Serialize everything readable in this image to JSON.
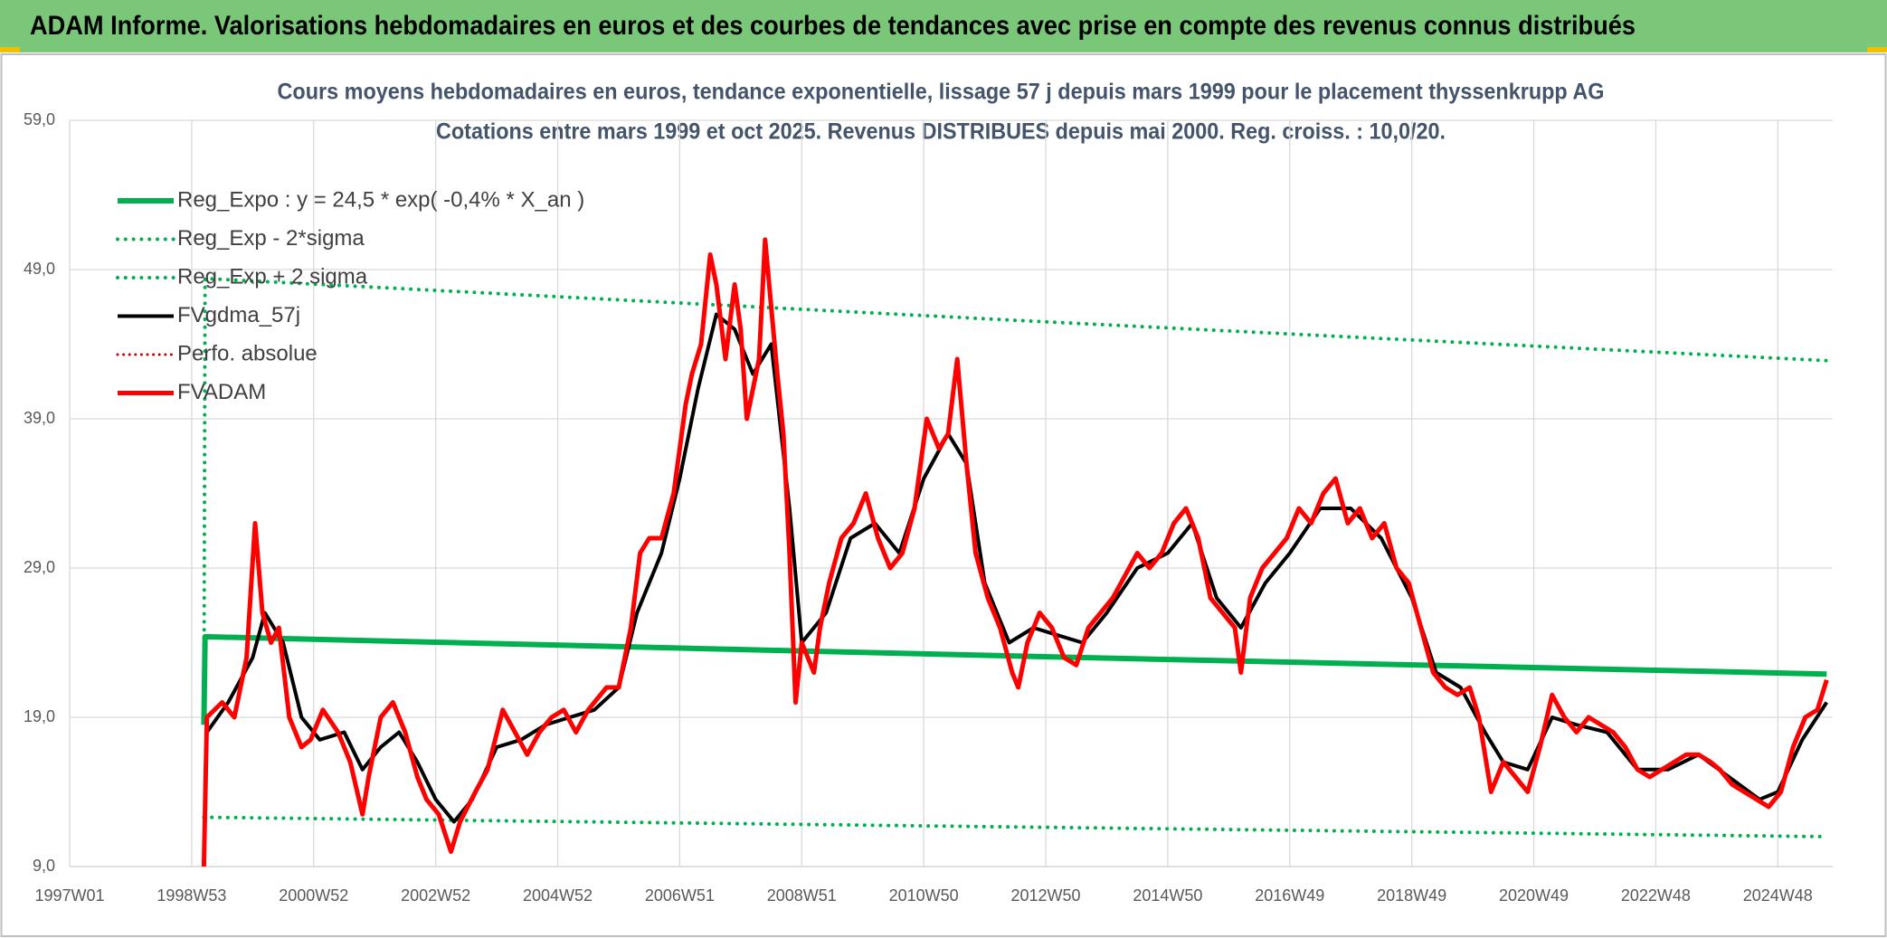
{
  "chart_data": {
    "type": "line",
    "header": "ADAM Informe. Valorisations hebdomadaires en euros et des courbes de tendances avec prise en compte des revenus connus distribués",
    "title": "Cours moyens hebdomadaires en euros, tendance exponentielle, lissage 57 j depuis mars 1999 pour le placement thyssenkrupp AG",
    "subtitle": "Cotations entre mars 1999 et oct 2025. Revenus DISTRIBUES depuis mai 2000. Reg. croiss. : 10,0/20.",
    "xlim": [
      1997.0,
      2025.9
    ],
    "xticks": [
      {
        "value": 1997.0,
        "label": "1997W01"
      },
      {
        "value": 1999.0,
        "label": "1998W53"
      },
      {
        "value": 2001.0,
        "label": "2000W52"
      },
      {
        "value": 2003.0,
        "label": "2002W52"
      },
      {
        "value": 2005.0,
        "label": "2004W52"
      },
      {
        "value": 2007.0,
        "label": "2006W51"
      },
      {
        "value": 2009.0,
        "label": "2008W51"
      },
      {
        "value": 2011.0,
        "label": "2010W50"
      },
      {
        "value": 2013.0,
        "label": "2012W50"
      },
      {
        "value": 2015.0,
        "label": "2014W50"
      },
      {
        "value": 2017.0,
        "label": "2016W49"
      },
      {
        "value": 2019.0,
        "label": "2018W49"
      },
      {
        "value": 2021.0,
        "label": "2020W49"
      },
      {
        "value": 2023.0,
        "label": "2022W48"
      },
      {
        "value": 2025.0,
        "label": "2024W48"
      }
    ],
    "ylim": [
      9,
      59
    ],
    "yticks": [
      {
        "value": 9,
        "label": "9,0"
      },
      {
        "value": 19,
        "label": "19,0"
      },
      {
        "value": 29,
        "label": "29,0"
      },
      {
        "value": 39,
        "label": "39,0"
      },
      {
        "value": 49,
        "label": "49,0"
      },
      {
        "value": 59,
        "label": "59,0"
      }
    ],
    "grid": true,
    "legend": "upper left",
    "series": [
      {
        "name": "Reg_Expo : y = 24,5 * exp( -0,4% *  X_an )",
        "color": "#00b050",
        "dash": "solid",
        "line_width": 6,
        "x": [
          1999.2,
          1999.22,
          2012.5,
          2025.8
        ],
        "values": [
          18.5,
          24.4,
          23.1,
          21.9
        ]
      },
      {
        "name": "Reg_Exp - 2*sigma",
        "color": "#00b050",
        "dash": "dotted",
        "line_width": 4,
        "x": [
          1999.2,
          2025.8
        ],
        "values": [
          12.3,
          11.0
        ]
      },
      {
        "name": "Reg_Exp + 2 sigma",
        "color": "#00b050",
        "dash": "dotted",
        "line_width": 4,
        "x": [
          1999.2,
          1999.22,
          2012.5,
          2025.8
        ],
        "values": [
          19,
          48.4,
          45.6,
          42.9
        ]
      },
      {
        "name": "FVgdma_57j",
        "color": "#000000",
        "dash": "solid",
        "line_width": 4,
        "x": [
          1999.25,
          1999.6,
          2000.0,
          2000.2,
          2000.5,
          2000.8,
          2001.1,
          2001.5,
          2001.8,
          2002.1,
          2002.4,
          2002.7,
          2003.0,
          2003.3,
          2003.6,
          2004.0,
          2004.4,
          2004.8,
          2005.2,
          2005.6,
          2006.0,
          2006.3,
          2006.7,
          2007.0,
          2007.3,
          2007.6,
          2007.9,
          2008.2,
          2008.5,
          2008.8,
          2009.0,
          2009.4,
          2009.8,
          2010.2,
          2010.6,
          2011.0,
          2011.4,
          2011.7,
          2012.0,
          2012.4,
          2012.8,
          2013.2,
          2013.6,
          2014.0,
          2014.5,
          2015.0,
          2015.4,
          2015.8,
          2016.2,
          2016.6,
          2017.0,
          2017.5,
          2018.0,
          2018.5,
          2019.0,
          2019.4,
          2019.8,
          2020.2,
          2020.5,
          2020.9,
          2021.3,
          2021.7,
          2022.2,
          2022.7,
          2023.2,
          2023.7,
          2024.2,
          2024.7,
          2025.0,
          2025.4,
          2025.8
        ],
        "values": [
          18,
          20,
          23,
          26,
          24,
          19,
          17.5,
          18,
          15.5,
          17,
          18,
          16,
          13.5,
          12,
          13.5,
          17,
          17.5,
          18.5,
          19,
          19.5,
          21,
          26,
          30,
          35,
          41,
          46,
          45,
          42,
          44,
          33,
          24,
          26,
          31,
          32,
          30,
          35,
          38,
          36,
          28,
          24,
          25,
          24.5,
          24,
          26,
          29,
          30,
          32,
          27,
          25,
          28,
          30,
          33,
          33,
          31,
          27,
          22,
          21,
          18,
          16,
          15.5,
          19,
          18.5,
          18,
          15.5,
          15.5,
          16.5,
          15,
          13.5,
          14,
          17.5,
          20
        ]
      },
      {
        "name": "Perfo. absolue",
        "color": "#c00000",
        "dash": "dotted",
        "line_width": 3,
        "x": [],
        "values": []
      },
      {
        "name": "FVADAM",
        "color": "#ff0000",
        "dash": "solid",
        "line_width": 5,
        "x": [
          1999.2,
          1999.25,
          1999.5,
          1999.7,
          1999.9,
          2000.04,
          2000.16,
          2000.3,
          2000.43,
          2000.6,
          2000.8,
          2000.95,
          2001.15,
          2001.4,
          2001.6,
          2001.8,
          2001.9,
          2002.1,
          2002.3,
          2002.5,
          2002.7,
          2002.85,
          2003.05,
          2003.25,
          2003.4,
          2003.65,
          2003.85,
          2004.1,
          2004.3,
          2004.5,
          2004.7,
          2004.9,
          2005.1,
          2005.3,
          2005.5,
          2005.8,
          2006.0,
          2006.2,
          2006.35,
          2006.5,
          2006.7,
          2006.9,
          2007.1,
          2007.2,
          2007.35,
          2007.5,
          2007.6,
          2007.75,
          2007.9,
          2008.0,
          2008.1,
          2008.3,
          2008.4,
          2008.6,
          2008.7,
          2008.8,
          2008.9,
          2009.0,
          2009.2,
          2009.3,
          2009.45,
          2009.65,
          2009.85,
          2010.05,
          2010.25,
          2010.45,
          2010.65,
          2010.85,
          2011.05,
          2011.25,
          2011.4,
          2011.55,
          2011.7,
          2011.85,
          2012.05,
          2012.25,
          2012.45,
          2012.55,
          2012.7,
          2012.9,
          2013.1,
          2013.3,
          2013.5,
          2013.7,
          2013.9,
          2014.1,
          2014.3,
          2014.5,
          2014.7,
          2014.9,
          2015.1,
          2015.3,
          2015.5,
          2015.7,
          2015.9,
          2016.1,
          2016.2,
          2016.35,
          2016.55,
          2016.75,
          2016.95,
          2017.15,
          2017.35,
          2017.55,
          2017.75,
          2017.95,
          2018.15,
          2018.35,
          2018.55,
          2018.75,
          2018.95,
          2019.15,
          2019.35,
          2019.55,
          2019.75,
          2019.95,
          2020.1,
          2020.3,
          2020.5,
          2020.7,
          2020.9,
          2021.1,
          2021.3,
          2021.5,
          2021.7,
          2021.9,
          2022.1,
          2022.3,
          2022.5,
          2022.7,
          2022.9,
          2023.1,
          2023.3,
          2023.5,
          2023.7,
          2023.9,
          2024.05,
          2024.25,
          2024.45,
          2024.65,
          2024.85,
          2025.05,
          2025.25,
          2025.45,
          2025.65,
          2025.8
        ],
        "values": [
          9,
          19,
          20,
          19,
          23,
          32,
          26,
          24,
          25,
          19,
          17,
          17.5,
          19.5,
          18,
          16,
          12.5,
          15,
          19,
          20,
          18,
          15,
          13.5,
          12.5,
          10,
          12,
          14,
          15.5,
          19.5,
          18,
          16.5,
          18,
          19,
          19.5,
          18,
          19.5,
          21,
          21,
          25,
          30,
          31,
          31,
          34,
          40,
          42,
          44,
          50,
          48,
          43,
          48,
          45,
          39,
          43,
          51,
          42,
          38,
          30,
          20,
          24,
          22,
          25,
          28,
          31,
          32,
          34,
          31,
          29,
          30,
          33,
          39,
          37,
          38,
          43,
          36,
          30,
          27,
          25,
          22,
          21,
          24,
          26,
          25,
          23,
          22.5,
          25,
          26,
          27,
          28.5,
          30,
          29,
          30,
          32,
          33,
          31,
          27,
          26,
          25,
          22,
          27,
          29,
          30,
          31,
          33,
          32,
          34,
          35,
          32,
          33,
          31,
          32,
          29,
          28,
          25,
          22,
          21,
          20.5,
          21,
          19,
          14,
          16,
          15,
          14,
          17,
          20.5,
          19,
          18,
          19,
          18.5,
          18,
          17,
          15.5,
          15,
          15.5,
          16,
          16.5,
          16.5,
          16,
          15.5,
          14.5,
          14,
          13.5,
          13,
          14,
          17,
          19,
          19.5,
          21.5
        ]
      }
    ]
  }
}
